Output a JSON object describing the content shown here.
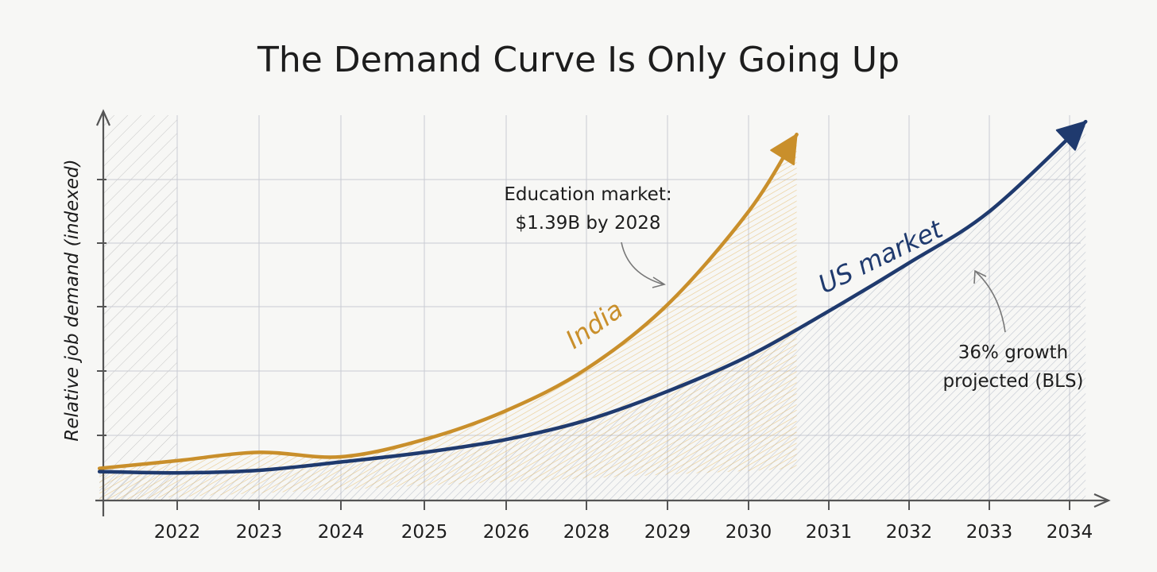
{
  "chart_data": {
    "type": "line",
    "title": "The Demand Curve Is Only Going Up",
    "xlabel": "",
    "ylabel": "Relative job demand (indexed)",
    "categories": [
      "2022",
      "2023",
      "2024",
      "2025",
      "2026",
      "2028",
      "2029",
      "2030",
      "2031",
      "2032",
      "2033",
      "2034"
    ],
    "ylim": [
      0,
      6
    ],
    "grid": true,
    "series": [
      {
        "name": "India",
        "color": "#c98f2b",
        "x": [
          2021.05,
          2022,
          2023,
          2024,
          2025,
          2026,
          2028,
          2029,
          2030,
          2030.6
        ],
        "values": [
          0.5,
          0.62,
          0.75,
          0.68,
          0.95,
          1.4,
          2.05,
          3.05,
          4.5,
          5.7
        ]
      },
      {
        "name": "US market",
        "color": "#1f3a6e",
        "x": [
          2021.05,
          2022,
          2023,
          2024,
          2025,
          2026,
          2028,
          2029,
          2030,
          2031,
          2032,
          2033,
          2034.2
        ],
        "values": [
          0.45,
          0.43,
          0.47,
          0.6,
          0.75,
          0.95,
          1.25,
          1.7,
          2.25,
          2.95,
          3.7,
          4.5,
          5.9
        ]
      }
    ],
    "annotations": [
      {
        "lines": [
          "Education market:",
          "$1.39B by 2028"
        ],
        "target_series": "India"
      },
      {
        "lines": [
          "36% growth",
          "projected (BLS)"
        ],
        "target_series": "US market"
      }
    ]
  }
}
